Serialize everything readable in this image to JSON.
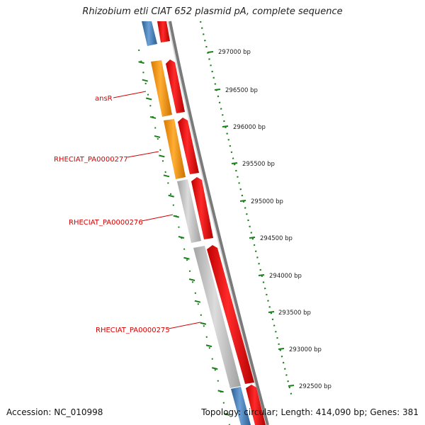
{
  "title": "Rhizobium etli CIAT 652 plasmid pA, complete sequence",
  "footer": {
    "accession": "Accession: NC_010998",
    "topology": "Topology: circular; Length: 414,090 bp; Genes: 381"
  },
  "scale": {
    "labels": [
      "297000 bp",
      "296500 bp",
      "296000 bp",
      "295500 bp",
      "295000 bp",
      "294500 bp",
      "294000 bp",
      "293500 bp",
      "293000 bp",
      "292500 bp"
    ]
  },
  "gene_labels": [
    "ansR",
    "RHECIAT_PA0000277",
    "RHECIAT_PA0000276",
    "RHECIAT_PA0000275"
  ],
  "colors": {
    "forward": "#3a78b5",
    "reverse": "#ff0000",
    "orange": "#ff9900",
    "grey": "#c6c6c6",
    "scale": "#1a7f1a",
    "label": "#d40000"
  }
}
